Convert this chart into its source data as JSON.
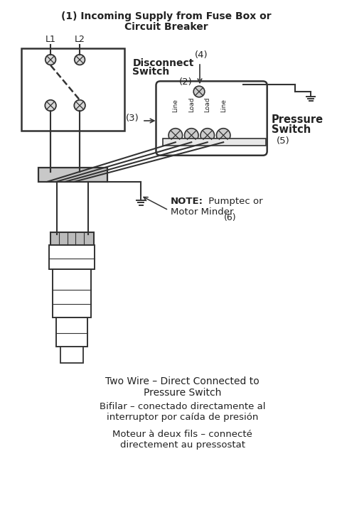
{
  "title_line1": "(1) Incoming Supply from Fuse Box or",
  "title_line2": "Circuit Breaker",
  "bg_color": "#ffffff",
  "line_color": "#333333",
  "text_color": "#222222",
  "fig_width": 4.74,
  "fig_height": 7.49,
  "L1": "L1",
  "L2": "L2",
  "disconnect_label": "Disconnect",
  "switch_label": "Switch",
  "disconnect_num": "(2)",
  "pressure_label": "Pressure",
  "switch_label2": "Switch",
  "pressure_num": "(5)",
  "note_bold": "NOTE:",
  "note_rest": " Pumptec or",
  "note_line2": "Motor Minder",
  "note_num": "(6)",
  "arrow_label": "(3)",
  "top_label": "(4)",
  "terminal_labels": [
    "Line",
    "Load",
    "Load",
    "Line"
  ],
  "line1": "Two Wire – Direct Connected to\nPressure Switch",
  "line2": "Bifilar – conectado directamente al\ninterruptor por caída de presión",
  "line3": "Moteur à deux fils – connecté\ndirectement au pressostat"
}
